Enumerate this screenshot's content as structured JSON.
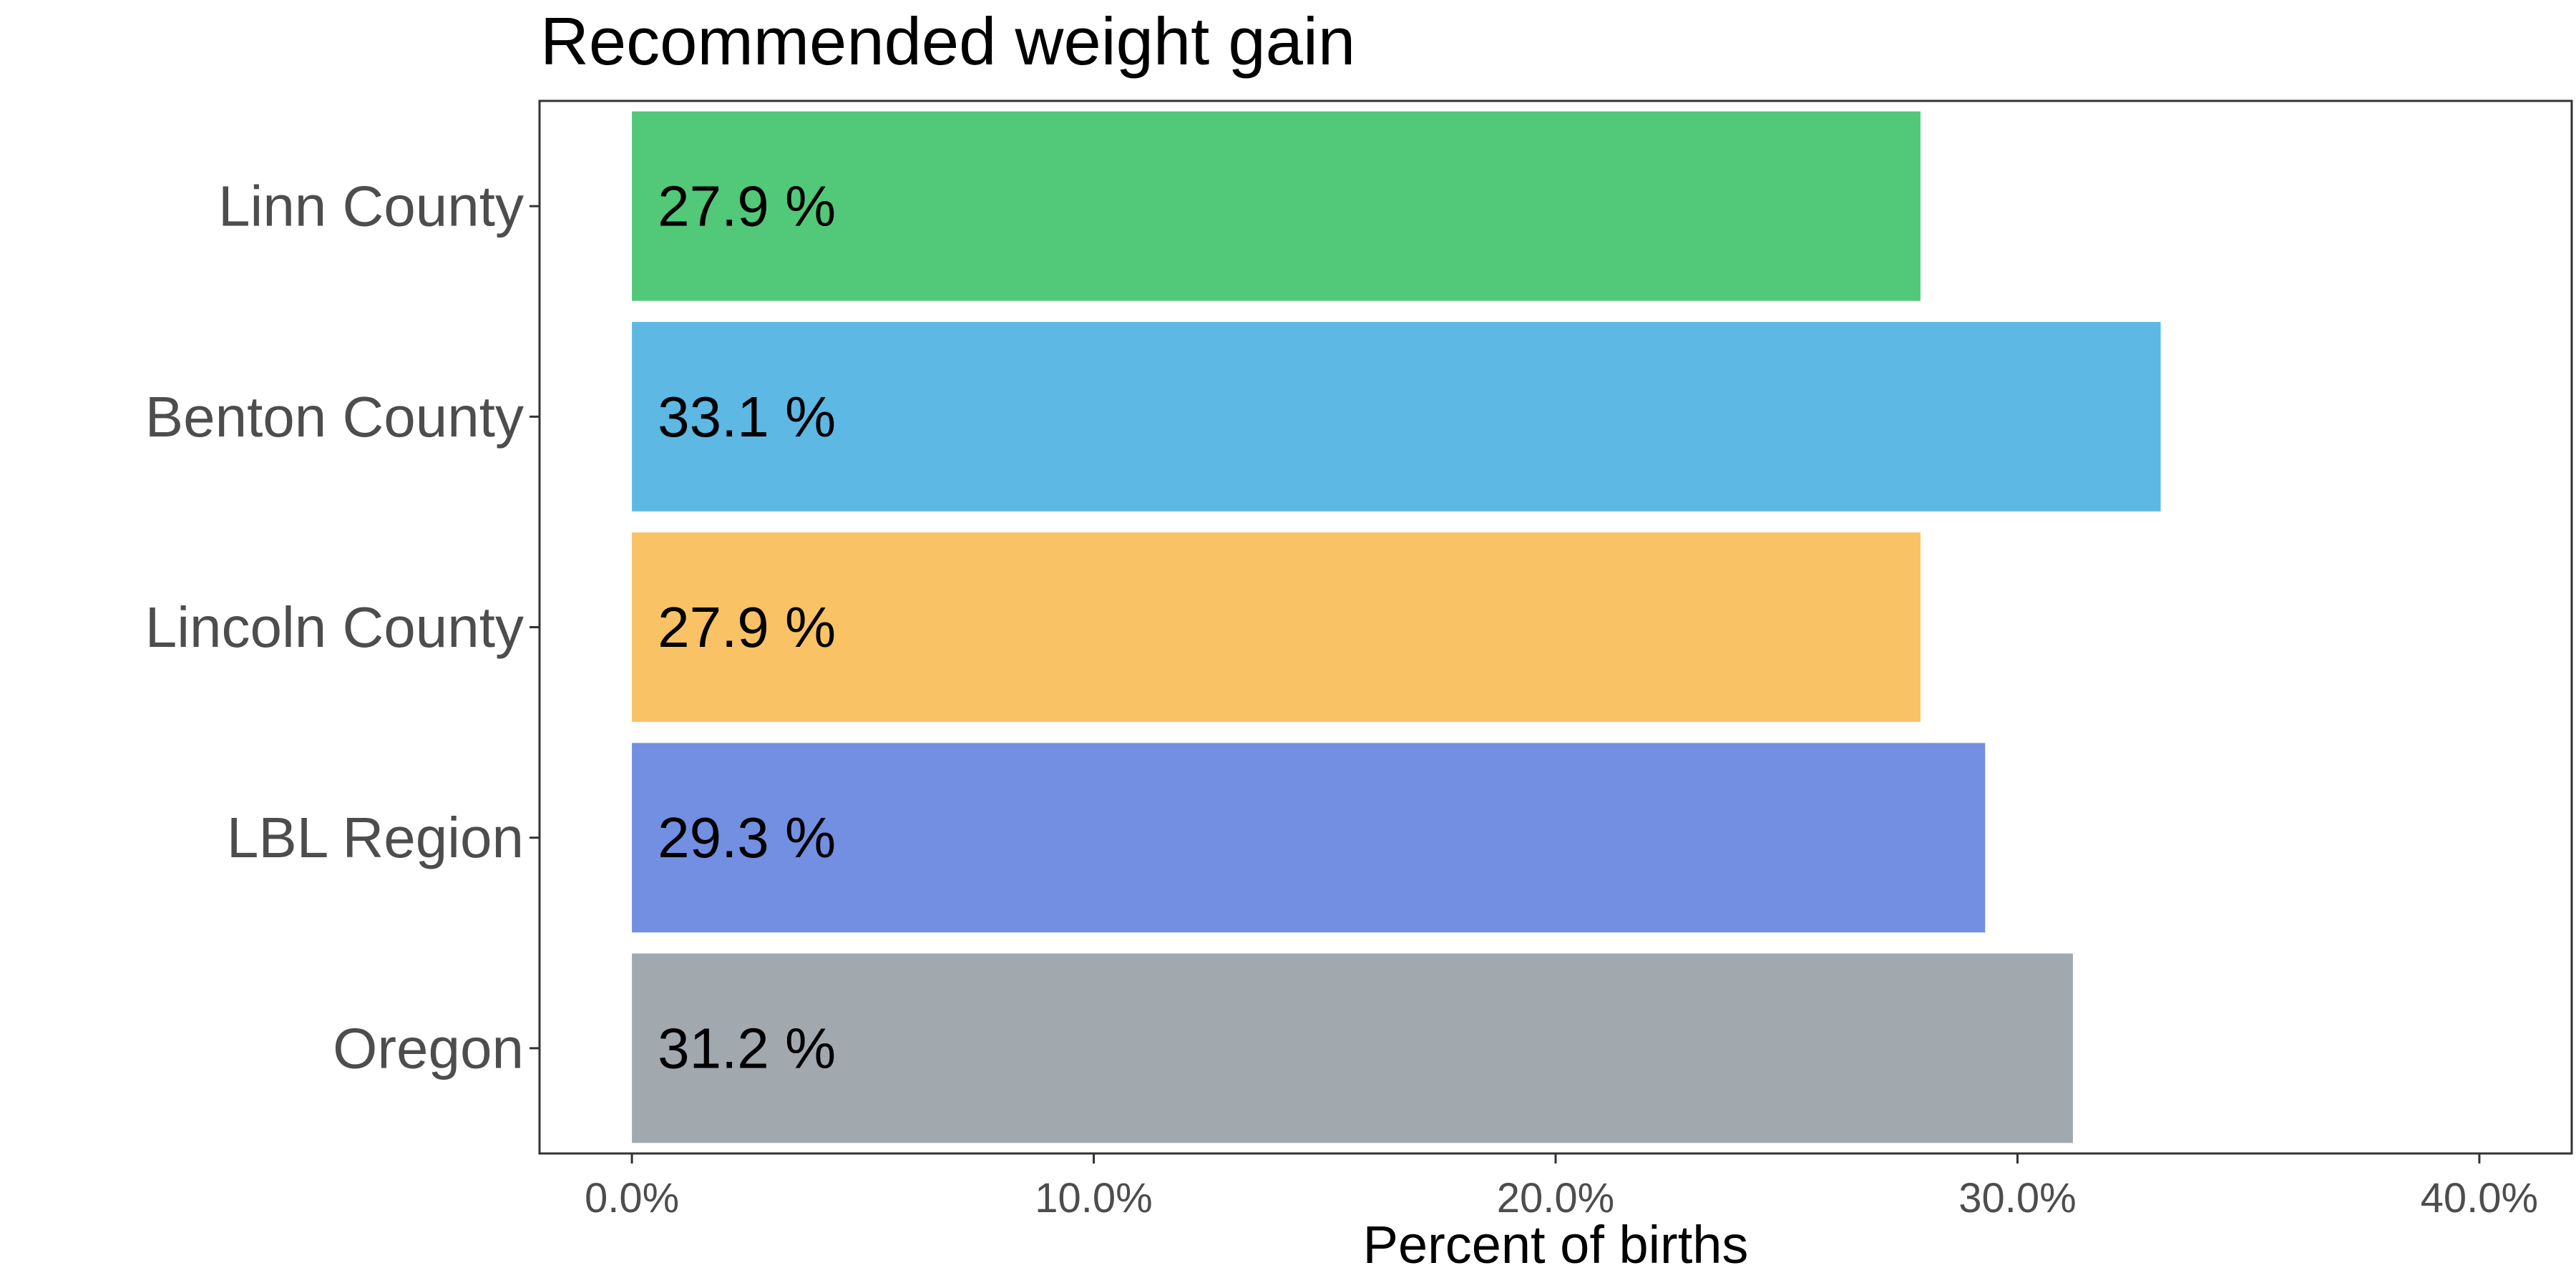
{
  "chart_data": {
    "type": "bar",
    "orientation": "horizontal",
    "title": "Recommended weight gain",
    "xlabel": "Percent of births",
    "ylabel": "",
    "xlim": [
      -2.0,
      42.0
    ],
    "x_ticks": [
      0,
      10,
      20,
      30,
      40
    ],
    "x_tick_labels": [
      "0.0%",
      "10.0%",
      "20.0%",
      "30.0%",
      "40.0%"
    ],
    "grid": false,
    "legend": "none",
    "categories": [
      "Linn County",
      "Benton County",
      "Lincoln County",
      "LBL Region",
      "Oregon"
    ],
    "values": [
      27.9,
      33.1,
      27.9,
      29.3,
      31.2
    ],
    "data_labels": [
      "27.9 %",
      "33.1 %",
      "27.9 %",
      "29.3 %",
      "31.2 %"
    ],
    "colors": [
      "#52c879",
      "#5db8e4",
      "#f9c265",
      "#728fe1",
      "#a1a8ae"
    ]
  }
}
